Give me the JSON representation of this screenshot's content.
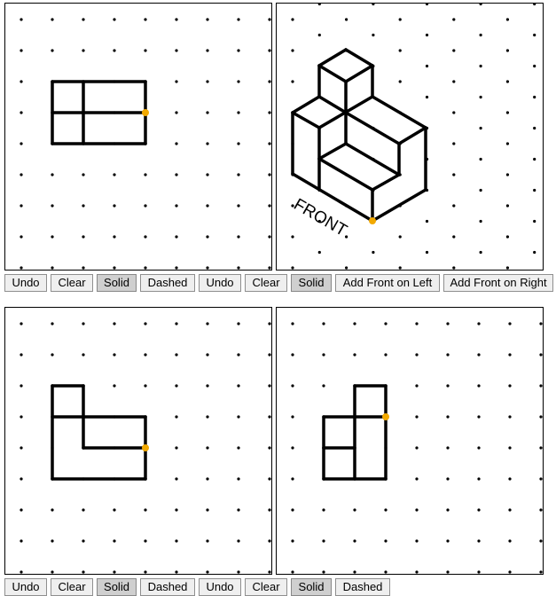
{
  "colors": {
    "line": "#000000",
    "dot": "#000000",
    "marker": "#f2a900",
    "active_button": "#cfcfcf"
  },
  "top_toolbar": {
    "undo1": "Undo",
    "clear1": "Clear",
    "solid1": "Solid",
    "dashed1": "Dashed",
    "undo2": "Undo",
    "clear2": "Clear",
    "solid2": "Solid",
    "add_front_left": "Add Front on Left",
    "add_front_right": "Add Front on Right"
  },
  "bottom_toolbar": {
    "undo1": "Undo",
    "clear1": "Clear",
    "solid1": "Solid",
    "dashed1": "Dashed",
    "undo2": "Undo",
    "clear2": "Clear",
    "solid2": "Solid",
    "dashed2": "Dashed"
  },
  "iso_label": "FRONT"
}
